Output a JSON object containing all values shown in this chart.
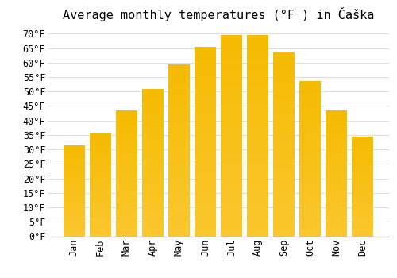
{
  "title": "Average monthly temperatures (°F ) in Čaška",
  "months": [
    "Jan",
    "Feb",
    "Mar",
    "Apr",
    "May",
    "Jun",
    "Jul",
    "Aug",
    "Sep",
    "Oct",
    "Nov",
    "Dec"
  ],
  "values": [
    31.5,
    35.5,
    43.5,
    51.0,
    59.5,
    65.5,
    69.5,
    69.5,
    63.5,
    53.5,
    43.5,
    34.5
  ],
  "bar_color_top": "#F5A800",
  "bar_color_bottom": "#FFD966",
  "bar_color": "#FCBA30",
  "background_color": "#FFFFFF",
  "grid_color": "#DDDDDD",
  "ylim": [
    0,
    72
  ],
  "ytick_step": 5,
  "title_fontsize": 11,
  "tick_fontsize": 8.5,
  "bar_width": 0.82
}
